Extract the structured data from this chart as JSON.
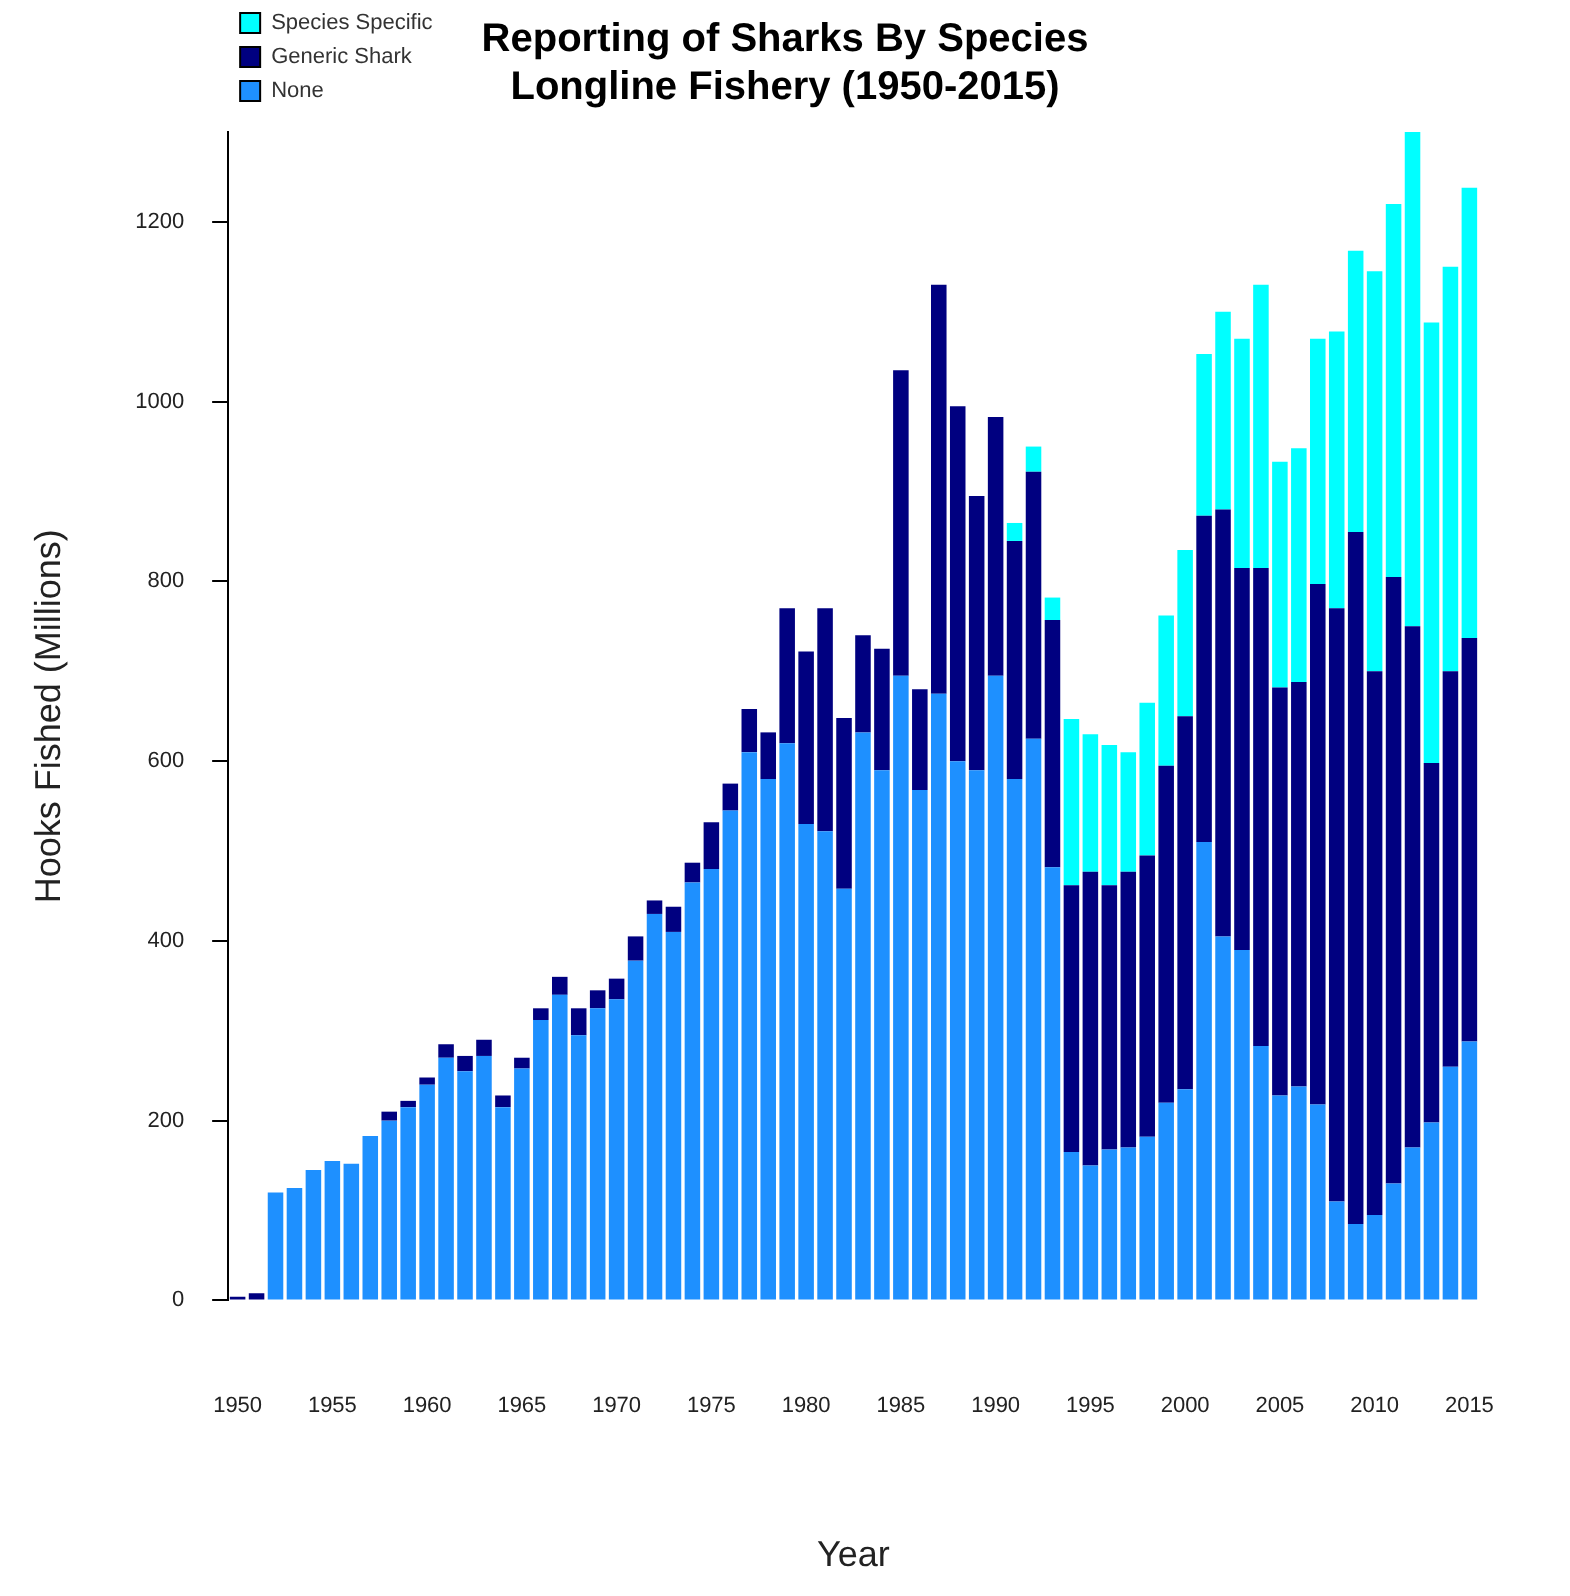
{
  "chart_data": {
    "type": "bar",
    "title": "Reporting of Sharks By Species\nLongline Fishery (1950-2015)",
    "xlabel": "Year",
    "ylabel": "Hooks Fished (Millions)",
    "categories": [
      "1950",
      null,
      null,
      null,
      null,
      "1955",
      null,
      null,
      null,
      null,
      "1960",
      null,
      null,
      null,
      null,
      "1965",
      null,
      null,
      null,
      null,
      "1970",
      null,
      null,
      null,
      null,
      "1975",
      null,
      null,
      null,
      null,
      "1980",
      null,
      null,
      null,
      null,
      "1985",
      null,
      null,
      null,
      null,
      "1990",
      null,
      null,
      null,
      null,
      "1995",
      null,
      null,
      null,
      null,
      "2000",
      null,
      null,
      null,
      null,
      "2005",
      null,
      null,
      null,
      null,
      "2010",
      null,
      null,
      null,
      null,
      "2015"
    ],
    "stacked": true,
    "series": [
      {
        "name": "None",
        "color": "#1e90ff",
        "values": [
          0,
          0,
          120,
          125,
          145,
          155,
          152,
          183,
          200,
          215,
          240,
          270,
          255,
          272,
          215,
          258,
          312,
          340,
          295,
          325,
          335,
          378,
          430,
          410,
          465,
          480,
          545,
          610,
          580,
          620,
          530,
          522,
          458,
          632,
          590,
          695,
          568,
          675,
          600,
          590,
          695,
          580,
          625,
          482,
          165,
          150,
          168,
          170,
          182,
          220,
          235,
          510,
          405,
          390,
          283,
          228,
          238,
          218,
          110,
          85,
          95,
          130,
          170,
          198,
          260,
          288
        ]
      },
      {
        "name": "Generic Shark",
        "color": "#000080",
        "values": [
          4,
          8,
          0,
          0,
          0,
          0,
          0,
          0,
          10,
          7,
          8,
          15,
          17,
          18,
          13,
          12,
          13,
          20,
          30,
          20,
          23,
          27,
          15,
          28,
          22,
          52,
          30,
          48,
          52,
          150,
          192,
          248,
          190,
          108,
          135,
          340,
          112,
          455,
          395,
          305,
          288,
          265,
          297,
          275,
          297,
          327,
          294,
          307,
          313,
          375,
          415,
          363,
          475,
          425,
          532,
          454,
          450,
          579,
          660,
          770,
          605,
          675,
          580,
          400,
          440,
          449
        ]
      },
      {
        "name": "Species Specific",
        "color": "#00ffff",
        "values": [
          0,
          0,
          0,
          0,
          0,
          0,
          0,
          0,
          0,
          0,
          0,
          0,
          0,
          0,
          0,
          0,
          0,
          0,
          0,
          0,
          0,
          0,
          0,
          0,
          0,
          0,
          0,
          0,
          0,
          0,
          0,
          0,
          0,
          0,
          0,
          0,
          0,
          0,
          0,
          0,
          0,
          20,
          28,
          25,
          185,
          153,
          156,
          133,
          170,
          167,
          185,
          180,
          220,
          255,
          315,
          251,
          260,
          273,
          308,
          313,
          445,
          415,
          550,
          490,
          450,
          501
        ]
      }
    ],
    "ylim": [
      0,
      1300
    ],
    "yticks": [
      0,
      200,
      400,
      600,
      800,
      1000,
      1200
    ],
    "legend": "top left"
  }
}
